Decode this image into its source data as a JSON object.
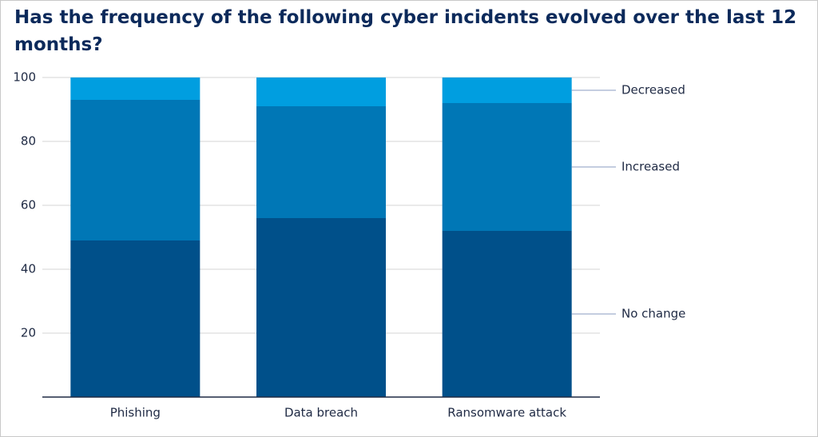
{
  "chart_data": {
    "type": "stacked-bar",
    "title": "Has the frequency of the following cyber incidents evolved over the last 12 months?",
    "categories": [
      "Phishing",
      "Data breach",
      "Ransomware attack"
    ],
    "series": [
      {
        "name": "No change",
        "color": "#00508a",
        "values": [
          49,
          56,
          52
        ]
      },
      {
        "name": "Increased",
        "color": "#0077b6",
        "values": [
          44,
          35,
          40
        ]
      },
      {
        "name": "Decreased",
        "color": "#009ee0",
        "values": [
          7,
          9,
          8
        ]
      }
    ],
    "ylim": [
      0,
      100
    ],
    "yticks": [
      20,
      40,
      60,
      80,
      100
    ],
    "grid": true
  }
}
